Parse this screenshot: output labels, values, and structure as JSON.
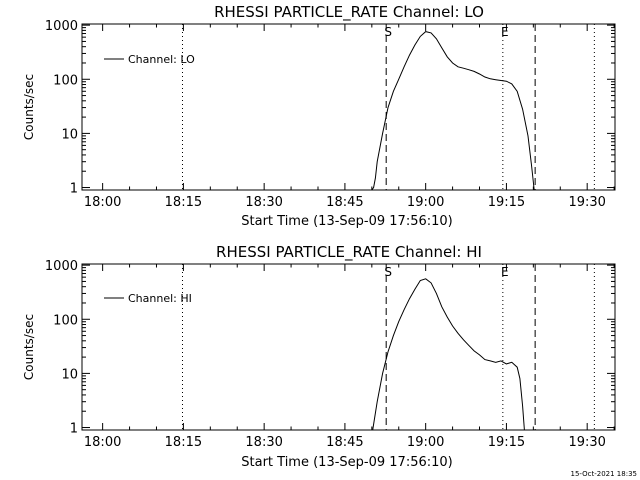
{
  "footer": {
    "timestamp": "15-Oct-2021 18:35"
  },
  "chart_data": [
    {
      "type": "line",
      "title": "RHESSI PARTICLE_RATE Channel: LO",
      "xlabel": "Start Time (13-Sep-09 17:56:10)",
      "ylabel": "Counts/sec",
      "yscale": "log",
      "xlim": [
        "17:56:10",
        "19:35:10"
      ],
      "ylim": [
        0.9,
        1050
      ],
      "x_tick_labels": [
        "18:00",
        "18:15",
        "18:30",
        "18:45",
        "19:00",
        "19:15",
        "19:30"
      ],
      "y_tick_labels": [
        "1",
        "10",
        "100",
        "1000"
      ],
      "legend": {
        "label": "Channel: LO",
        "position": "top-left"
      },
      "markers": [
        {
          "time": "18:14:50",
          "style": "dotted",
          "label": ""
        },
        {
          "time": "18:52:40",
          "style": "dashed",
          "label": "S"
        },
        {
          "time": "19:14:20",
          "style": "dotted",
          "label": "E"
        },
        {
          "time": "19:20:20",
          "style": "dashed",
          "label": ""
        },
        {
          "time": "19:31:20",
          "style": "dotted",
          "label": ""
        }
      ],
      "series": [
        {
          "name": "Channel: LO",
          "points": [
            [
              "18:50:00",
              0.9
            ],
            [
              "18:50:20",
              1.0
            ],
            [
              "18:50:40",
              1.5
            ],
            [
              "18:51:00",
              3
            ],
            [
              "18:52:00",
              10
            ],
            [
              "18:53:00",
              30
            ],
            [
              "18:54:00",
              60
            ],
            [
              "18:55:00",
              100
            ],
            [
              "18:56:00",
              170
            ],
            [
              "18:57:00",
              280
            ],
            [
              "18:58:00",
              430
            ],
            [
              "18:59:00",
              620
            ],
            [
              "19:00:00",
              760
            ],
            [
              "19:01:00",
              720
            ],
            [
              "19:02:00",
              560
            ],
            [
              "19:03:00",
              380
            ],
            [
              "19:04:00",
              260
            ],
            [
              "19:05:00",
              200
            ],
            [
              "19:06:00",
              170
            ],
            [
              "19:07:00",
              160
            ],
            [
              "19:08:00",
              150
            ],
            [
              "19:09:00",
              140
            ],
            [
              "19:10:00",
              125
            ],
            [
              "19:11:00",
              110
            ],
            [
              "19:12:00",
              102
            ],
            [
              "19:13:00",
              98
            ],
            [
              "19:14:00",
              95
            ],
            [
              "19:15:00",
              92
            ],
            [
              "19:16:00",
              82
            ],
            [
              "19:17:00",
              60
            ],
            [
              "19:18:00",
              28
            ],
            [
              "19:19:00",
              9
            ],
            [
              "19:19:40",
              2.5
            ],
            [
              "19:20:10",
              0.9
            ]
          ]
        }
      ]
    },
    {
      "type": "line",
      "title": "RHESSI PARTICLE_RATE Channel: HI",
      "xlabel": "Start Time (13-Sep-09 17:56:10)",
      "ylabel": "Counts/sec",
      "yscale": "log",
      "xlim": [
        "17:56:10",
        "19:35:10"
      ],
      "ylim": [
        0.9,
        1050
      ],
      "x_tick_labels": [
        "18:00",
        "18:15",
        "18:30",
        "18:45",
        "19:00",
        "19:15",
        "19:30"
      ],
      "y_tick_labels": [
        "1",
        "10",
        "100",
        "1000"
      ],
      "legend": {
        "label": "Channel: HI",
        "position": "top-left"
      },
      "markers": [
        {
          "time": "18:14:50",
          "style": "dotted",
          "label": ""
        },
        {
          "time": "18:52:40",
          "style": "dashed",
          "label": "S"
        },
        {
          "time": "19:14:20",
          "style": "dotted",
          "label": "E"
        },
        {
          "time": "19:20:20",
          "style": "dashed",
          "label": ""
        },
        {
          "time": "19:31:20",
          "style": "dotted",
          "label": ""
        }
      ],
      "series": [
        {
          "name": "Channel: HI",
          "points": [
            [
              "18:50:10",
              0.9
            ],
            [
              "18:51:00",
              3
            ],
            [
              "18:52:00",
              10
            ],
            [
              "18:53:00",
              25
            ],
            [
              "18:54:00",
              50
            ],
            [
              "18:55:00",
              90
            ],
            [
              "18:56:00",
              150
            ],
            [
              "18:57:00",
              240
            ],
            [
              "18:58:00",
              360
            ],
            [
              "18:59:00",
              520
            ],
            [
              "19:00:00",
              560
            ],
            [
              "19:01:00",
              470
            ],
            [
              "19:02:00",
              300
            ],
            [
              "19:03:00",
              170
            ],
            [
              "19:04:00",
              110
            ],
            [
              "19:05:00",
              75
            ],
            [
              "19:06:00",
              55
            ],
            [
              "19:07:00",
              42
            ],
            [
              "19:08:00",
              33
            ],
            [
              "19:09:00",
              26
            ],
            [
              "19:10:00",
              22
            ],
            [
              "19:11:00",
              18
            ],
            [
              "19:12:00",
              17
            ],
            [
              "19:13:00",
              16
            ],
            [
              "19:14:00",
              17
            ],
            [
              "19:15:00",
              15
            ],
            [
              "19:16:00",
              16
            ],
            [
              "19:17:00",
              13
            ],
            [
              "19:17:30",
              8
            ],
            [
              "19:18:00",
              2.5
            ],
            [
              "19:18:20",
              0.9
            ]
          ]
        }
      ]
    }
  ]
}
